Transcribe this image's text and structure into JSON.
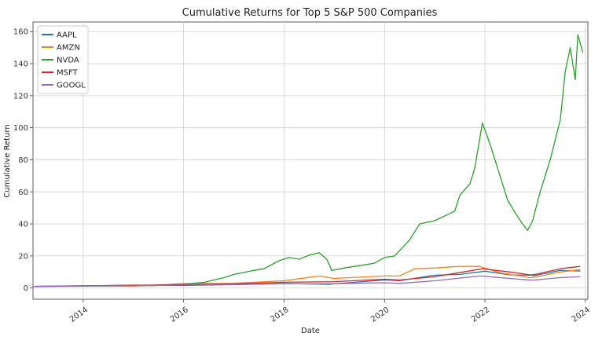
{
  "chart_data": {
    "type": "line",
    "title": "Cumulative Returns for Top 5 S&P 500 Companies",
    "xlabel": "Date",
    "ylabel": "Cumulative Return",
    "xlim": [
      2013.0,
      2024.05
    ],
    "ylim": [
      -7,
      166
    ],
    "x_ticks": [
      2014,
      2016,
      2018,
      2020,
      2022,
      2024
    ],
    "x_tick_labels": [
      "2014",
      "2016",
      "2018",
      "2020",
      "2022",
      "2024"
    ],
    "y_ticks": [
      0,
      20,
      40,
      60,
      80,
      100,
      120,
      140,
      160
    ],
    "y_tick_labels": [
      "0",
      "20",
      "40",
      "60",
      "80",
      "100",
      "120",
      "140",
      "160"
    ],
    "grid": true,
    "legend_position": "top-left",
    "series": [
      {
        "name": "AAPL",
        "color": "#1f77b4",
        "x": [
          2013.0,
          2014.0,
          2015.0,
          2016.0,
          2017.0,
          2018.0,
          2018.9,
          2019.0,
          2020.0,
          2020.3,
          2021.0,
          2021.5,
          2022.0,
          2022.5,
          2022.9,
          2023.0,
          2023.5,
          2023.9
        ],
        "y": [
          1.0,
          1.3,
          1.8,
          1.6,
          2.1,
          2.8,
          2.3,
          2.6,
          5.0,
          4.6,
          8.0,
          8.5,
          10.5,
          8.2,
          8.0,
          7.8,
          11.0,
          10.6
        ]
      },
      {
        "name": "AMZN",
        "color": "#ff7f0e",
        "x": [
          2013.0,
          2014.0,
          2015.0,
          2016.0,
          2017.0,
          2018.0,
          2018.7,
          2019.0,
          2020.0,
          2020.3,
          2020.6,
          2021.0,
          2021.5,
          2021.9,
          2022.3,
          2022.9,
          2023.0,
          2023.5,
          2023.9
        ],
        "y": [
          1.0,
          1.5,
          1.2,
          2.7,
          3.0,
          4.5,
          7.5,
          6.0,
          7.5,
          7.5,
          12.0,
          12.5,
          13.5,
          13.5,
          9.5,
          6.5,
          6.8,
          10.0,
          11.5
        ]
      },
      {
        "name": "NVDA",
        "color": "#2ca02c",
        "x": [
          2013.0,
          2014.0,
          2015.0,
          2015.5,
          2016.0,
          2016.4,
          2016.8,
          2017.0,
          2017.4,
          2017.6,
          2017.9,
          2018.1,
          2018.3,
          2018.5,
          2018.7,
          2018.85,
          2018.95,
          2019.2,
          2019.5,
          2019.8,
          2020.0,
          2020.2,
          2020.5,
          2020.7,
          2021.0,
          2021.2,
          2021.4,
          2021.5,
          2021.7,
          2021.8,
          2021.95,
          2022.1,
          2022.3,
          2022.45,
          2022.6,
          2022.75,
          2022.85,
          2022.95,
          2023.1,
          2023.3,
          2023.5,
          2023.6,
          2023.7,
          2023.8,
          2023.85,
          2023.95
        ],
        "y": [
          1.0,
          1.2,
          1.4,
          1.6,
          2.5,
          3.5,
          6.5,
          8.5,
          11.0,
          12.0,
          17.0,
          19.0,
          18.0,
          20.5,
          22.0,
          18.0,
          11.0,
          12.5,
          14.0,
          15.5,
          19.0,
          20.0,
          30.0,
          40.0,
          42.0,
          45.0,
          48.0,
          58.0,
          65.0,
          75.0,
          103.0,
          90.0,
          70.0,
          55.0,
          47.0,
          40.0,
          36.0,
          42.0,
          60.0,
          80.0,
          105.0,
          135.0,
          150.0,
          130.0,
          158.0,
          147.0
        ]
      },
      {
        "name": "MSFT",
        "color": "#d62728",
        "x": [
          2013.0,
          2014.0,
          2015.0,
          2016.0,
          2017.0,
          2018.0,
          2019.0,
          2020.0,
          2020.3,
          2021.0,
          2021.95,
          2022.5,
          2022.9,
          2023.0,
          2023.5,
          2023.9
        ],
        "y": [
          1.0,
          1.4,
          1.7,
          2.0,
          2.6,
          3.6,
          4.0,
          5.5,
          5.0,
          7.0,
          12.0,
          10.0,
          8.2,
          8.5,
          12.0,
          13.5
        ]
      },
      {
        "name": "GOOGL",
        "color": "#9467bd",
        "x": [
          2013.0,
          2014.0,
          2015.0,
          2016.0,
          2017.0,
          2018.0,
          2019.0,
          2020.0,
          2020.3,
          2021.0,
          2021.9,
          2022.5,
          2022.9,
          2023.0,
          2023.5,
          2023.9
        ],
        "y": [
          1.0,
          1.3,
          1.5,
          1.8,
          2.2,
          2.6,
          2.7,
          3.3,
          2.9,
          4.5,
          7.5,
          6.0,
          4.9,
          5.0,
          6.5,
          7.0
        ]
      }
    ]
  }
}
